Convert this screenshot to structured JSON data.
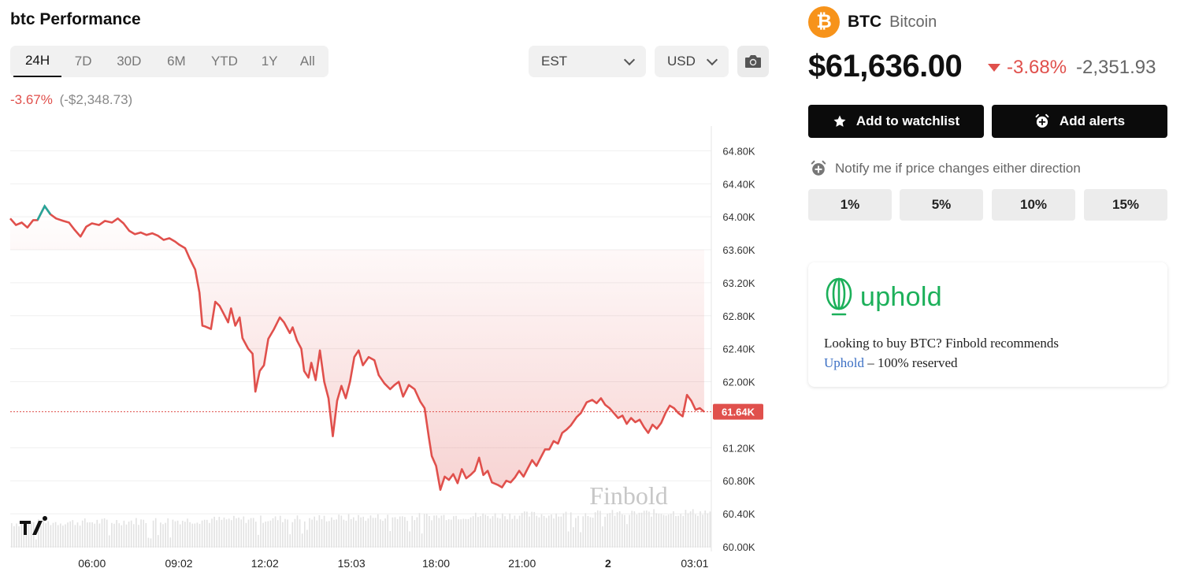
{
  "performance": {
    "title": "btc Performance",
    "change_pct": "-3.67%",
    "change_abs": "(-$2,348.73)"
  },
  "ranges": [
    {
      "label": "24H",
      "active": true
    },
    {
      "label": "7D"
    },
    {
      "label": "30D"
    },
    {
      "label": "6M"
    },
    {
      "label": "YTD"
    },
    {
      "label": "1Y"
    },
    {
      "label": "All"
    }
  ],
  "controls": {
    "timezone": "EST",
    "currency": "USD",
    "screenshot_icon": "camera-icon"
  },
  "chart_data": {
    "type": "line",
    "y_ticks": [
      "64.80K",
      "64.40K",
      "64.00K",
      "63.60K",
      "63.20K",
      "62.80K",
      "62.40K",
      "62.00K",
      "61.20K",
      "60.80K",
      "60.40K",
      "60.00K"
    ],
    "y_tick_values": [
      64800,
      64400,
      64000,
      63600,
      63200,
      62800,
      62400,
      62000,
      61200,
      60800,
      60400,
      60000
    ],
    "ylim": [
      59990,
      65100
    ],
    "x_ticks": [
      "06:00",
      "09:02",
      "12:02",
      "15:03",
      "18:00",
      "21:00",
      "2",
      "03:01"
    ],
    "x_tick_hours": [
      6,
      9.03,
      12.03,
      15.05,
      18,
      21,
      24,
      27.02
    ],
    "xlim": [
      3.15,
      27.6
    ],
    "current_label": "61.64K",
    "current_value": 61636,
    "watermark": "Finbold",
    "line_color": "#e0504c",
    "up_color": "#26a69a",
    "series": [
      {
        "values": [
          [
            3.15,
            63980
          ],
          [
            3.35,
            63900
          ],
          [
            3.55,
            63930
          ],
          [
            3.75,
            63870
          ],
          [
            3.95,
            63960
          ],
          [
            4.1,
            63960
          ],
          [
            4.35,
            64130
          ],
          [
            4.55,
            64030
          ],
          [
            4.75,
            63980
          ],
          [
            5.0,
            63950
          ],
          [
            5.2,
            63930
          ],
          [
            5.4,
            63840
          ],
          [
            5.6,
            63760
          ],
          [
            5.8,
            63880
          ],
          [
            6.0,
            63920
          ],
          [
            6.25,
            63900
          ],
          [
            6.45,
            63950
          ],
          [
            6.7,
            63930
          ],
          [
            6.9,
            63980
          ],
          [
            7.1,
            63920
          ],
          [
            7.3,
            63830
          ],
          [
            7.5,
            63790
          ],
          [
            7.7,
            63810
          ],
          [
            7.9,
            63780
          ],
          [
            8.1,
            63800
          ],
          [
            8.3,
            63770
          ],
          [
            8.5,
            63720
          ],
          [
            8.7,
            63740
          ],
          [
            8.9,
            63700
          ],
          [
            9.05,
            63660
          ],
          [
            9.25,
            63620
          ],
          [
            9.4,
            63500
          ],
          [
            9.6,
            63360
          ],
          [
            9.75,
            63080
          ],
          [
            9.85,
            62680
          ],
          [
            9.95,
            62670
          ],
          [
            10.15,
            62640
          ],
          [
            10.3,
            62970
          ],
          [
            10.45,
            62920
          ],
          [
            10.6,
            62820
          ],
          [
            10.75,
            62720
          ],
          [
            10.85,
            62890
          ],
          [
            11.0,
            62680
          ],
          [
            11.15,
            62780
          ],
          [
            11.25,
            62530
          ],
          [
            11.45,
            62400
          ],
          [
            11.6,
            62340
          ],
          [
            11.7,
            61880
          ],
          [
            11.85,
            62130
          ],
          [
            12.0,
            62200
          ],
          [
            12.15,
            62520
          ],
          [
            12.35,
            62640
          ],
          [
            12.55,
            62780
          ],
          [
            12.7,
            62720
          ],
          [
            12.9,
            62590
          ],
          [
            13.0,
            62660
          ],
          [
            13.15,
            62500
          ],
          [
            13.3,
            62400
          ],
          [
            13.4,
            62130
          ],
          [
            13.55,
            62050
          ],
          [
            13.65,
            62230
          ],
          [
            13.8,
            62020
          ],
          [
            13.95,
            62380
          ],
          [
            14.1,
            62000
          ],
          [
            14.25,
            61800
          ],
          [
            14.4,
            61340
          ],
          [
            14.55,
            61770
          ],
          [
            14.7,
            61950
          ],
          [
            14.85,
            61800
          ],
          [
            15.0,
            62000
          ],
          [
            15.15,
            62300
          ],
          [
            15.3,
            62380
          ],
          [
            15.45,
            62200
          ],
          [
            15.65,
            62300
          ],
          [
            15.85,
            62260
          ],
          [
            16.0,
            62080
          ],
          [
            16.2,
            61980
          ],
          [
            16.4,
            61910
          ],
          [
            16.55,
            61960
          ],
          [
            16.7,
            62000
          ],
          [
            16.85,
            61820
          ],
          [
            17.05,
            61960
          ],
          [
            17.25,
            61910
          ],
          [
            17.45,
            61760
          ],
          [
            17.6,
            61680
          ],
          [
            17.75,
            61320
          ],
          [
            17.85,
            61100
          ],
          [
            18.0,
            60980
          ],
          [
            18.15,
            60690
          ],
          [
            18.3,
            60850
          ],
          [
            18.45,
            60810
          ],
          [
            18.6,
            60880
          ],
          [
            18.75,
            60770
          ],
          [
            18.9,
            60940
          ],
          [
            19.05,
            60830
          ],
          [
            19.2,
            60870
          ],
          [
            19.35,
            60920
          ],
          [
            19.5,
            61080
          ],
          [
            19.65,
            60870
          ],
          [
            19.8,
            60920
          ],
          [
            19.95,
            60780
          ],
          [
            20.15,
            60750
          ],
          [
            20.3,
            60720
          ],
          [
            20.45,
            60800
          ],
          [
            20.6,
            60780
          ],
          [
            20.75,
            60840
          ],
          [
            20.9,
            60920
          ],
          [
            21.05,
            60850
          ],
          [
            21.2,
            60950
          ],
          [
            21.35,
            61050
          ],
          [
            21.5,
            60980
          ],
          [
            21.65,
            61080
          ],
          [
            21.8,
            61180
          ],
          [
            21.95,
            61180
          ],
          [
            22.1,
            61280
          ],
          [
            22.25,
            61250
          ],
          [
            22.4,
            61380
          ],
          [
            22.55,
            61420
          ],
          [
            22.7,
            61470
          ],
          [
            22.9,
            61570
          ],
          [
            23.05,
            61620
          ],
          [
            23.25,
            61750
          ],
          [
            23.45,
            61780
          ],
          [
            23.6,
            61740
          ],
          [
            23.75,
            61800
          ],
          [
            23.9,
            61720
          ],
          [
            24.05,
            61680
          ],
          [
            24.2,
            61620
          ],
          [
            24.35,
            61560
          ],
          [
            24.5,
            61590
          ],
          [
            24.65,
            61490
          ],
          [
            24.8,
            61560
          ],
          [
            24.95,
            61510
          ],
          [
            25.1,
            61540
          ],
          [
            25.25,
            61450
          ],
          [
            25.4,
            61380
          ],
          [
            25.55,
            61480
          ],
          [
            25.7,
            61430
          ],
          [
            25.85,
            61500
          ],
          [
            26.0,
            61620
          ],
          [
            26.15,
            61710
          ],
          [
            26.3,
            61680
          ],
          [
            26.45,
            61620
          ],
          [
            26.6,
            61580
          ],
          [
            26.75,
            61840
          ],
          [
            26.9,
            61770
          ],
          [
            27.05,
            61660
          ],
          [
            27.2,
            61680
          ],
          [
            27.35,
            61636
          ]
        ]
      }
    ]
  },
  "coin": {
    "symbol": "BTC",
    "name": "Bitcoin",
    "logo_glyph": "₿",
    "price": "$61,636.00",
    "change_pct": "-3.68%",
    "change_abs": "-2,351.93",
    "brand_color": "#f7931a"
  },
  "actions": {
    "watchlist_label": "Add to watchlist",
    "alerts_label": "Add alerts"
  },
  "notify": {
    "text": "Notify me if price changes either direction",
    "options": [
      "1%",
      "5%",
      "10%",
      "15%"
    ]
  },
  "ad": {
    "brand": "uphold",
    "text_before": "Looking to buy BTC? Finbold recommends",
    "link_text": "Uphold",
    "text_after": " – 100% reserved",
    "brand_color": "#1cb05a"
  }
}
